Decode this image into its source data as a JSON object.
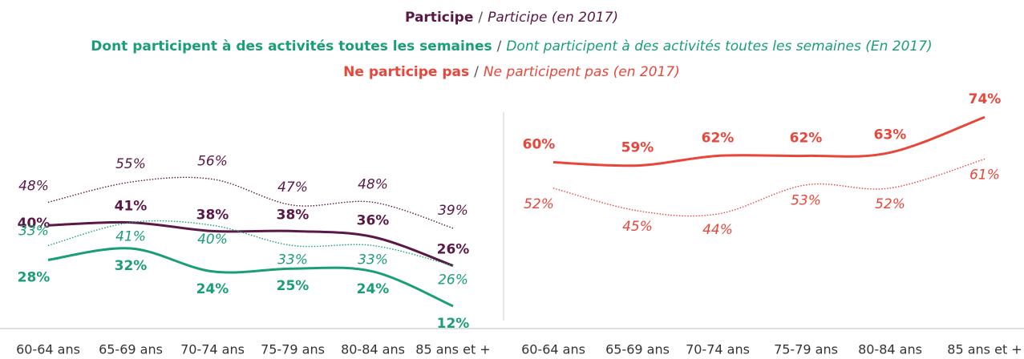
{
  "chart_data": [
    {
      "type": "line",
      "legend_separator": "/",
      "categories": [
        "60-64 ans",
        "65-69 ans",
        "70-74 ans",
        "75-79 ans",
        "80-84 ans",
        "85 ans et +"
      ],
      "ylim": [
        7,
        82
      ],
      "series": [
        {
          "name": "Participe",
          "color": "#5a1846",
          "style": "solid",
          "values": [
            40,
            41,
            38,
            38,
            36,
            26
          ],
          "value_labels": [
            "40%",
            "41%",
            "38%",
            "38%",
            "36%",
            "26%"
          ]
        },
        {
          "name": "Participe (en 2017)",
          "color": "#5a1846",
          "style": "dotted",
          "values": [
            48,
            55,
            56,
            47,
            48,
            39
          ],
          "value_labels": [
            "48%",
            "55%",
            "56%",
            "47%",
            "48%",
            "39%"
          ]
        },
        {
          "name": "Dont participent à des activités toutes les semaines",
          "color": "#1a9e78",
          "style": "solid",
          "values": [
            28,
            32,
            24,
            25,
            24,
            12
          ],
          "value_labels": [
            "28%",
            "32%",
            "24%",
            "25%",
            "24%",
            "12%"
          ]
        },
        {
          "name": "Dont participent à des activités toutes les semaines (En 2017)",
          "color": "#1a9e78",
          "style": "dotted",
          "values": [
            33,
            41,
            40,
            33,
            33,
            26
          ],
          "value_labels": [
            "33%",
            "41%",
            "40%",
            "33%",
            "33%",
            "26%"
          ]
        }
      ]
    },
    {
      "type": "line",
      "legend_separator": "/",
      "categories": [
        "60-64 ans",
        "65-69 ans",
        "70-74 ans",
        "75-79 ans",
        "80-84 ans",
        "85 ans et +"
      ],
      "ylim": [
        11,
        78
      ],
      "series": [
        {
          "name": "Ne participe pas",
          "color": "#e8463a",
          "style": "solid",
          "values": [
            60,
            59,
            62,
            62,
            63,
            74
          ],
          "value_labels": [
            "60%",
            "59%",
            "62%",
            "62%",
            "63%",
            "74%"
          ]
        },
        {
          "name": "Ne participent pas (en 2017)",
          "color": "#e8463a",
          "style": "dotted",
          "values": [
            52,
            45,
            44,
            53,
            52,
            61
          ],
          "value_labels": [
            "52%",
            "45%",
            "44%",
            "53%",
            "52%",
            "61%"
          ]
        }
      ]
    }
  ]
}
